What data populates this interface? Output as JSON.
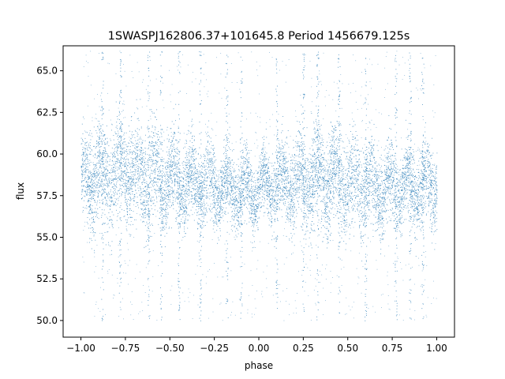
{
  "chart_data": {
    "type": "scatter",
    "title": "1SWASPJ162806.37+101645.8 Period 1456679.125s",
    "xlabel": "phase",
    "ylabel": "flux",
    "xlim": [
      -1.1,
      1.1
    ],
    "ylim": [
      49.0,
      66.5
    ],
    "xticks": [
      -1.0,
      -0.75,
      -0.5,
      -0.25,
      0.0,
      0.25,
      0.5,
      0.75,
      1.0
    ],
    "xtick_labels": [
      "−1.00",
      "−0.75",
      "−0.50",
      "−0.25",
      "0.00",
      "0.25",
      "0.50",
      "0.75",
      "1.00"
    ],
    "yticks": [
      50.0,
      52.5,
      55.0,
      57.5,
      60.0,
      62.5,
      65.0
    ],
    "ytick_labels": [
      "50.0",
      "52.5",
      "55.0",
      "57.5",
      "60.0",
      "62.5",
      "65.0"
    ],
    "grid": false,
    "legend": "none",
    "point_color": "#1f77b4",
    "point_sampled_envelope": [
      {
        "x": -1.0,
        "y_low": 55.6,
        "y_high": 61.0
      },
      {
        "x": -0.9,
        "y_low": 55.5,
        "y_high": 62.0
      },
      {
        "x": -0.75,
        "y_low": 55.8,
        "y_high": 62.2
      },
      {
        "x": -0.6,
        "y_low": 55.3,
        "y_high": 61.8
      },
      {
        "x": -0.45,
        "y_low": 55.5,
        "y_high": 61.0
      },
      {
        "x": -0.25,
        "y_low": 55.7,
        "y_high": 60.5
      },
      {
        "x": -0.1,
        "y_low": 55.5,
        "y_high": 60.2
      },
      {
        "x": 0.0,
        "y_low": 56.0,
        "y_high": 60.0
      },
      {
        "x": 0.15,
        "y_low": 55.6,
        "y_high": 61.0
      },
      {
        "x": 0.35,
        "y_low": 55.4,
        "y_high": 62.0
      },
      {
        "x": 0.5,
        "y_low": 55.5,
        "y_high": 61.5
      },
      {
        "x": 0.7,
        "y_low": 55.3,
        "y_high": 60.5
      },
      {
        "x": 0.85,
        "y_low": 55.5,
        "y_high": 60.5
      },
      {
        "x": 1.0,
        "y_low": 55.7,
        "y_high": 61.0
      }
    ],
    "outlier_bands_x": [
      -0.88,
      -0.78,
      -0.62,
      -0.55,
      -0.45,
      -0.33,
      -0.18,
      -0.1,
      0.1,
      0.25,
      0.33,
      0.45,
      0.6,
      0.77,
      0.85,
      0.92
    ]
  }
}
